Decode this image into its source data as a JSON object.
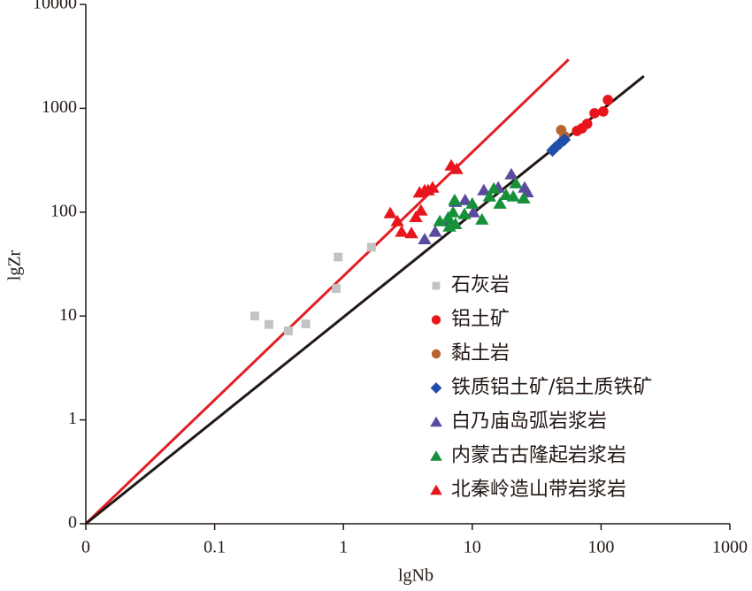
{
  "chart_data": {
    "type": "scatter",
    "xlabel": "lgNb",
    "ylabel": "lgZr",
    "xscale": "log",
    "yscale": "log",
    "xlim": [
      0.01,
      1000
    ],
    "ylim": [
      0.1,
      10000
    ],
    "xticks": [
      {
        "value": 0.01,
        "label": "0"
      },
      0.1,
      1,
      10,
      100,
      1000
    ],
    "yticks": [
      {
        "value": 0.1,
        "label": "0"
      },
      1,
      10,
      100,
      1000,
      10000
    ],
    "lines": [
      {
        "color": "#e31e24",
        "x": [
          0.01,
          56
        ],
        "values": [
          0.1,
          2950
        ]
      },
      {
        "color": "#231815",
        "x": [
          0.01,
          215
        ],
        "values": [
          0.1,
          2040
        ]
      }
    ],
    "series": [
      {
        "name": "石灰岩",
        "color": "#c3c3c3",
        "marker": "square",
        "x": [
          0.205,
          0.264,
          0.374,
          0.51,
          0.91,
          0.88,
          1.65
        ],
        "values": [
          10,
          8.3,
          7.2,
          8.4,
          37,
          18.4,
          46
        ]
      },
      {
        "name": "铝土矿",
        "color": "#e8161c",
        "marker": "circle",
        "x": [
          65,
          71,
          78,
          89,
          104,
          113
        ],
        "values": [
          605,
          641,
          708,
          896,
          932,
          1202
        ]
      },
      {
        "name": "黏土岩",
        "color": "#b8642f",
        "marker": "circle",
        "x": [
          49,
          52
        ],
        "values": [
          617,
          538
        ]
      },
      {
        "name": "铁质铝土矿/铝土质铁矿",
        "color": "#1f4fa8",
        "marker": "diamond",
        "x": [
          42,
          44,
          48,
          52
        ],
        "values": [
          393,
          417,
          460,
          498
        ]
      },
      {
        "name": "白乃庙岛弧岩浆岩",
        "color": "#5b4a9e",
        "marker": "triangle",
        "x": [
          4.27,
          5.16,
          6.65,
          7.4,
          8.8,
          10.2,
          12.3,
          15.9,
          20.1,
          25.5,
          26.7
        ],
        "values": [
          55,
          65,
          82,
          126,
          131,
          100,
          163,
          173,
          232,
          173,
          156
        ]
      },
      {
        "name": "内蒙古古隆起岩浆岩",
        "color": "#16913a",
        "marker": "triangle",
        "x": [
          5.6,
          6.5,
          7.1,
          7.3,
          8.7,
          10.0,
          11.9,
          13.6,
          14.7,
          16.4,
          18.3,
          20.8,
          21.8,
          25.1,
          6.65,
          7.4
        ],
        "values": [
          82,
          89,
          100,
          131,
          96,
          121,
          85,
          142,
          169,
          121,
          147,
          142,
          190,
          136,
          73,
          77
        ]
      },
      {
        "name": "北秦岭造山带岩浆岩",
        "color": "#e8161c",
        "marker": "triangle",
        "x": [
          2.31,
          2.62,
          2.83,
          3.37,
          3.65,
          4.0,
          4.27,
          4.55,
          4.92,
          6.87,
          7.55,
          3.9
        ],
        "values": [
          98,
          82,
          65,
          63,
          90,
          104,
          163,
          163,
          173,
          282,
          261,
          155
        ]
      }
    ]
  }
}
